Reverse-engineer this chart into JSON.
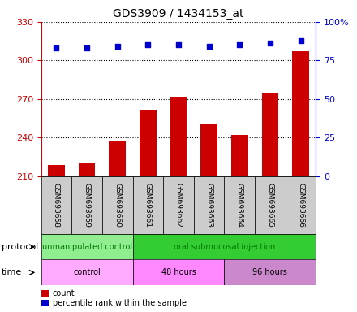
{
  "title": "GDS3909 / 1434153_at",
  "samples": [
    "GSM693658",
    "GSM693659",
    "GSM693660",
    "GSM693661",
    "GSM693662",
    "GSM693663",
    "GSM693664",
    "GSM693665",
    "GSM693666"
  ],
  "counts": [
    219,
    220,
    238,
    262,
    272,
    251,
    242,
    275,
    307
  ],
  "percentile_ranks": [
    83,
    83,
    84,
    85,
    85,
    84,
    85,
    86,
    88
  ],
  "ylim_left": [
    210,
    330
  ],
  "ylim_right": [
    0,
    100
  ],
  "yticks_left": [
    210,
    240,
    270,
    300,
    330
  ],
  "yticks_right": [
    0,
    25,
    50,
    75,
    100
  ],
  "bar_color": "#cc0000",
  "scatter_color": "#0000cc",
  "bar_bottom": 210,
  "protocol_groups": [
    {
      "label": "unmanipulated control",
      "start": 0,
      "end": 3,
      "color": "#90ee90"
    },
    {
      "label": "oral submucosal injection",
      "start": 3,
      "end": 9,
      "color": "#33cc33"
    }
  ],
  "time_groups": [
    {
      "label": "control",
      "start": 0,
      "end": 3,
      "color": "#ffaaff"
    },
    {
      "label": "48 hours",
      "start": 3,
      "end": 6,
      "color": "#ff88ff"
    },
    {
      "label": "96 hours",
      "start": 6,
      "end": 9,
      "color": "#cc88cc"
    }
  ],
  "legend_count_label": "count",
  "legend_percentile_label": "percentile rank within the sample",
  "protocol_label": "protocol",
  "time_label": "time",
  "left_axis_color": "#cc0000",
  "right_axis_color": "#0000cc",
  "xlabel_box_color": "#cccccc",
  "protocol_text_color": "#007700",
  "time_text_color": "#000000"
}
